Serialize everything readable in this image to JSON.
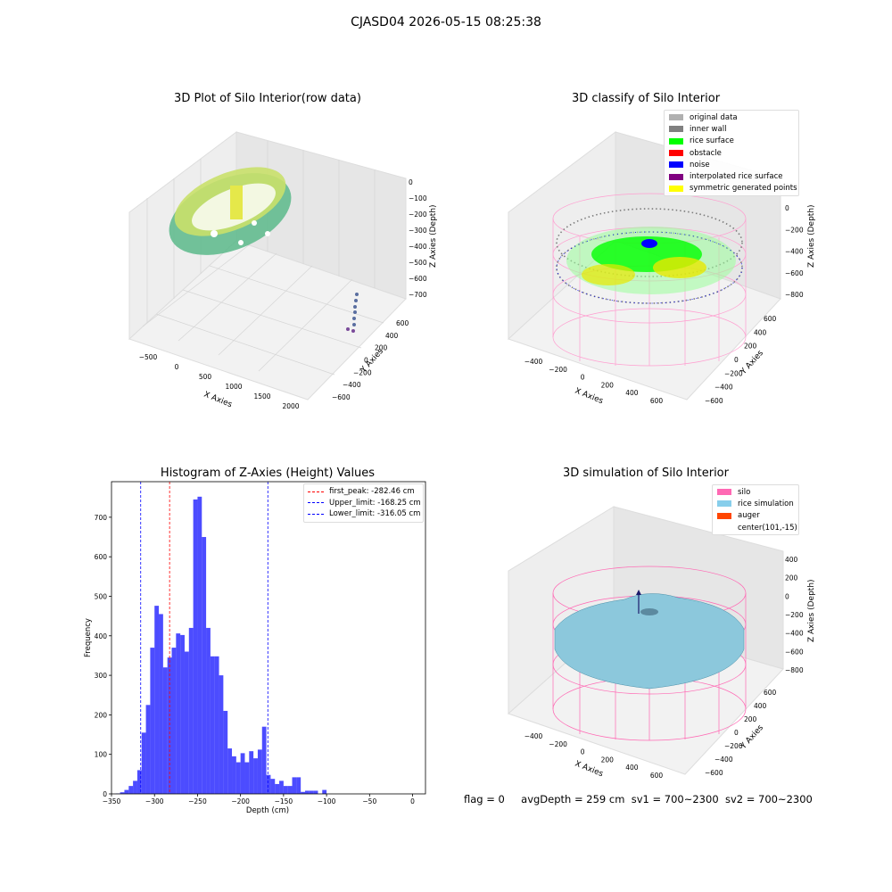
{
  "suptitle": "CJASD04 2026-05-15 08:25:38",
  "footer": {
    "flag": "flag = 0",
    "avg": "avgDepth = 259 cm",
    "sv1": "sv1 = 700~2300",
    "sv2": "sv2 = 700~2300"
  },
  "panels": {
    "raw": {
      "title": "3D Plot of Silo Interior(row data)",
      "xlabel": "X Axies",
      "ylabel": "Y Axies",
      "zlabel": "Z Axies (Depth)",
      "xticks": [
        "−500",
        "0",
        "500",
        "1000",
        "1500",
        "2000"
      ],
      "yticks": [
        "600",
        "400",
        "200",
        "0",
        "−200",
        "−400",
        "−600"
      ],
      "zticks": [
        "0",
        "−100",
        "−200",
        "−300",
        "−400",
        "−500",
        "−600",
        "−700"
      ]
    },
    "classify": {
      "title": "3D classify of Silo Interior",
      "xlabel": "X Axies",
      "ylabel": "Y Axies",
      "zlabel": "Z Axies (Depth)",
      "xticks": [
        "−400",
        "−200",
        "0",
        "200",
        "400",
        "600"
      ],
      "yticks": [
        "600",
        "400",
        "200",
        "0",
        "−200",
        "−400",
        "−600"
      ],
      "zticks": [
        "200",
        "0",
        "−200",
        "−400",
        "−600",
        "−800"
      ],
      "zticks_hidden_top": "400",
      "legend": [
        {
          "label": "original data",
          "color": "#b0b0b0"
        },
        {
          "label": "inner wall",
          "color": "#808080"
        },
        {
          "label": "rice surface",
          "color": "#00ff00"
        },
        {
          "label": "obstacle",
          "color": "#ff0000"
        },
        {
          "label": "noise",
          "color": "#0000ff"
        },
        {
          "label": "interpolated rice surface",
          "color": "#800080"
        },
        {
          "label": "symmetric generated points",
          "color": "#ffff00"
        }
      ]
    },
    "sim": {
      "title": "3D simulation of Silo Interior",
      "xlabel": "X Axies",
      "ylabel": "Y Axies",
      "zlabel": "Z Axies (Depth)",
      "xticks": [
        "−400",
        "−200",
        "0",
        "200",
        "400",
        "600"
      ],
      "yticks": [
        "600",
        "400",
        "200",
        "0",
        "−200",
        "−400",
        "−600"
      ],
      "zticks": [
        "400",
        "200",
        "0",
        "−200",
        "−400",
        "−600",
        "−800"
      ],
      "legend": [
        {
          "label": "silo",
          "color": "#ff69b4"
        },
        {
          "label": "rice simulation",
          "color": "#87ceeb"
        },
        {
          "label": "auger",
          "color": "#ff4500"
        },
        {
          "label": "center(101,-15)",
          "color": ""
        }
      ]
    }
  },
  "chart_data": {
    "type": "bar",
    "title": "Histogram of Z-Axies (Height) Values",
    "xlabel": "Depth (cm)",
    "ylabel": "Frequency",
    "xlim": [
      -350,
      15
    ],
    "ylim": [
      0,
      790
    ],
    "xticks": [
      -350,
      -300,
      -250,
      -200,
      -150,
      -100,
      -50,
      0
    ],
    "yticks": [
      0,
      100,
      200,
      300,
      400,
      500,
      600,
      700
    ],
    "bin_start": -345,
    "bin_width": 5,
    "counts": [
      1,
      4,
      10,
      20,
      33,
      60,
      155,
      225,
      370,
      476,
      455,
      320,
      345,
      370,
      406,
      402,
      360,
      420,
      745,
      752,
      650,
      420,
      348,
      348,
      300,
      210,
      115,
      95,
      80,
      103,
      80,
      108,
      90,
      112,
      170,
      48,
      38,
      25,
      33,
      20,
      20,
      42,
      42,
      5,
      8,
      8,
      8,
      0,
      10
    ],
    "color": "#0000ff",
    "lines": [
      {
        "x": -282.46,
        "color": "#ff0000",
        "label": "first_peak: -282.46 cm"
      },
      {
        "x": -168.25,
        "color": "#0000ff",
        "label": "Upper_limit: -168.25 cm"
      },
      {
        "x": -316.05,
        "color": "#0000ff",
        "label": "Lower_limit: -316.05 cm"
      }
    ],
    "legend_position": "top-right"
  }
}
